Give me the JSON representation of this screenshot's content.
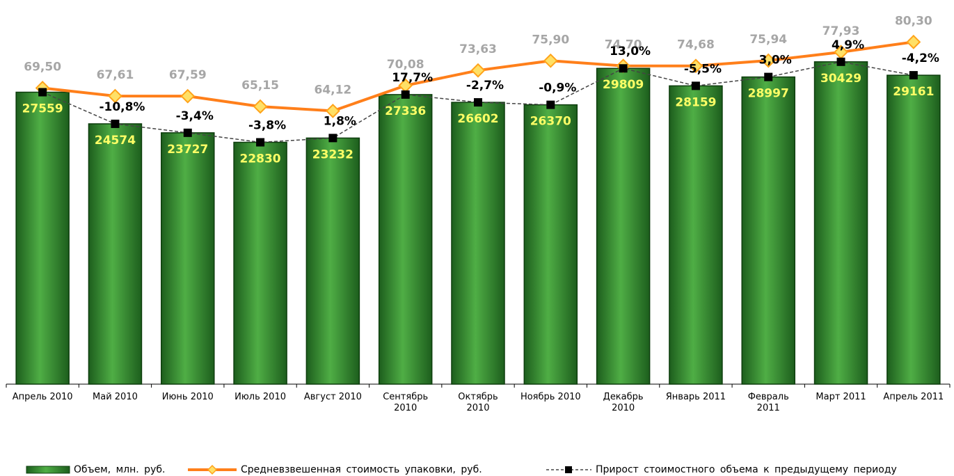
{
  "chart_data": {
    "type": "bar",
    "categories": [
      "Апрель 2010",
      "Май 2010",
      "Июнь 2010",
      "Июль 2010",
      "Август 2010",
      "Сентябрь\n2010",
      "Октябрь\n2010",
      "Ноябрь 2010",
      "Декабрь\n2010",
      "Январь 2011",
      "Февраль\n2011",
      "Март 2011",
      "Апрель 2011"
    ],
    "ylim": [
      0,
      36000
    ],
    "y2lim": [
      0,
      89.5
    ],
    "legend": "bottom",
    "series": [
      {
        "name": "Объем, млн. руб.",
        "type": "bar",
        "color": "#2e8b2e",
        "values": [
          27559,
          24574,
          23727,
          22830,
          23232,
          27336,
          26602,
          26370,
          29809,
          28159,
          28997,
          30429,
          29161
        ]
      },
      {
        "name": "Средневзвешенная  стоимость упаковки, руб.",
        "type": "line",
        "axis": "y2",
        "color": "#ff7f1a",
        "values": [
          69.5,
          67.61,
          67.59,
          65.15,
          64.12,
          70.08,
          73.63,
          75.9,
          74.7,
          74.68,
          75.94,
          77.93,
          80.3
        ],
        "value_labels": [
          "69,50",
          "67,61",
          "67,59",
          "65,15",
          "64,12",
          "70,08",
          "73,63",
          "75,90",
          "74,70",
          "74,68",
          "75,94",
          "77,93",
          "80,30"
        ]
      },
      {
        "name": "Прирост стоимостного объема к предыдущему периоду",
        "type": "line",
        "color": "#000000",
        "values": [
          null,
          -10.8,
          -3.4,
          -3.8,
          1.8,
          17.7,
          -2.7,
          -0.9,
          13.0,
          -5.5,
          3.0,
          4.9,
          -4.2
        ],
        "value_labels": [
          null,
          "-10,8%",
          "-3,4%",
          "-3,8%",
          "1,8%",
          "17,7%",
          "-2,7%",
          "-0,9%",
          "13,0%",
          "-5,5%",
          "3,0%",
          "4,9%",
          "-4,2%"
        ]
      }
    ]
  }
}
